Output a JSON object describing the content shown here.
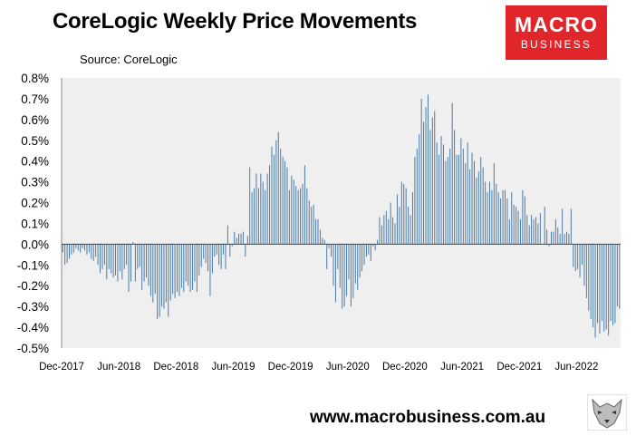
{
  "header": {
    "title": "CoreLogic Weekly Price Movements",
    "source": "Source: CoreLogic"
  },
  "logo": {
    "line1": "MACRO",
    "line2": "BUSINESS",
    "color": "#e0262b"
  },
  "footer": {
    "url": "www.macrobusiness.com.au",
    "icon": "wolf-logo-icon"
  },
  "chart_data": {
    "type": "bar",
    "title": "CoreLogic Weekly Price Movements",
    "bar_color": "#4a7aa8",
    "plot_background": "#efefef",
    "ylim": [
      -0.5,
      0.8
    ],
    "yticks": [
      "-0.5%",
      "-0.4%",
      "-0.3%",
      "-0.2%",
      "-0.1%",
      "0.0%",
      "0.1%",
      "0.2%",
      "0.3%",
      "0.4%",
      "0.5%",
      "0.6%",
      "0.7%",
      "0.8%"
    ],
    "ytick_values": [
      -0.5,
      -0.4,
      -0.3,
      -0.2,
      -0.1,
      0.0,
      0.1,
      0.2,
      0.3,
      0.4,
      0.5,
      0.6,
      0.7,
      0.8
    ],
    "xticks": [
      "Dec-2017",
      "Jun-2018",
      "Dec-2018",
      "Jun-2019",
      "Dec-2019",
      "Jun-2020",
      "Dec-2020",
      "Jun-2021",
      "Dec-2021",
      "Jun-2022"
    ],
    "start_label": "Dec-2017",
    "weeks_per_tick": 26,
    "values": [
      -0.04,
      -0.1,
      -0.09,
      -0.07,
      -0.05,
      -0.04,
      -0.02,
      -0.03,
      -0.04,
      -0.02,
      -0.03,
      -0.05,
      -0.04,
      -0.07,
      -0.08,
      -0.06,
      -0.1,
      -0.14,
      -0.12,
      -0.1,
      -0.17,
      -0.12,
      -0.14,
      -0.16,
      -0.15,
      -0.18,
      -0.13,
      -0.17,
      -0.12,
      -0.1,
      -0.23,
      -0.18,
      0.01,
      -0.18,
      -0.12,
      -0.11,
      -0.22,
      -0.18,
      -0.16,
      -0.2,
      -0.25,
      -0.28,
      -0.24,
      -0.36,
      -0.35,
      -0.3,
      -0.31,
      -0.28,
      -0.35,
      -0.27,
      -0.24,
      -0.26,
      -0.23,
      -0.25,
      -0.21,
      -0.23,
      -0.18,
      -0.2,
      -0.23,
      -0.22,
      -0.18,
      -0.23,
      -0.15,
      -0.11,
      -0.07,
      -0.09,
      -0.13,
      -0.25,
      -0.14,
      -0.06,
      -0.05,
      -0.1,
      -0.12,
      -0.05,
      -0.12,
      0.09,
      -0.06,
      -0.01,
      0.06,
      0.03,
      0.05,
      0.05,
      0.06,
      -0.06,
      0.04,
      0.37,
      0.25,
      0.27,
      0.34,
      0.27,
      0.34,
      0.3,
      0.26,
      0.34,
      0.38,
      0.47,
      0.43,
      0.5,
      0.54,
      0.46,
      0.42,
      0.4,
      0.37,
      0.26,
      0.33,
      0.31,
      0.28,
      0.26,
      0.27,
      0.29,
      0.38,
      0.27,
      0.21,
      0.18,
      0.19,
      0.12,
      0.12,
      0.07,
      0.03,
      0.02,
      -0.12,
      -0.02,
      -0.06,
      -0.2,
      -0.28,
      -0.12,
      -0.21,
      -0.31,
      -0.3,
      -0.25,
      -0.17,
      -0.3,
      -0.26,
      -0.19,
      -0.22,
      -0.16,
      -0.13,
      -0.1,
      -0.06,
      -0.05,
      -0.08,
      -0.01,
      -0.03,
      0.02,
      0.13,
      0.09,
      0.14,
      0.16,
      0.12,
      0.2,
      0.13,
      0.1,
      0.24,
      0.18,
      0.3,
      0.29,
      0.27,
      0.18,
      0.14,
      0.25,
      0.42,
      0.46,
      0.53,
      0.7,
      0.59,
      0.66,
      0.72,
      0.55,
      0.61,
      0.64,
      0.49,
      0.43,
      0.52,
      0.48,
      0.4,
      0.42,
      0.46,
      0.68,
      0.55,
      0.43,
      0.43,
      0.51,
      0.46,
      0.39,
      0.49,
      0.36,
      0.44,
      0.4,
      0.32,
      0.35,
      0.42,
      0.37,
      0.3,
      0.25,
      0.3,
      0.26,
      0.39,
      0.29,
      0.25,
      0.22,
      0.26,
      0.26,
      0.22,
      0.12,
      0.25,
      0.19,
      0.18,
      0.16,
      0.12,
      0.26,
      0.23,
      0.14,
      0.09,
      0.14,
      0.12,
      0.13,
      0.1,
      0.15,
      0.0,
      0.18,
      0.07,
      -0.01,
      0.06,
      0.06,
      0.12,
      0.08,
      0.05,
      0.17,
      0.05,
      0.06,
      0.05,
      0.17,
      -0.11,
      -0.13,
      -0.12,
      -0.16,
      -0.1,
      -0.2,
      -0.26,
      -0.32,
      -0.36,
      -0.4,
      -0.45,
      -0.38,
      -0.43,
      -0.37,
      -0.42,
      -0.41,
      -0.44,
      -0.37,
      -0.39,
      -0.38,
      -0.3,
      -0.31
    ]
  }
}
